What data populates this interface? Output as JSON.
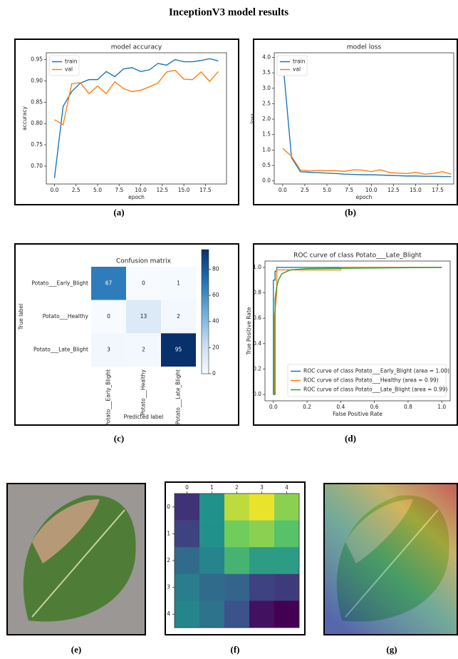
{
  "title": "InceptionV3 model results",
  "images": [
    {
      "caption": "(e)"
    },
    {
      "caption": "(g)"
    }
  ],
  "chart_data": [
    {
      "type": "line",
      "title": "model accuracy",
      "caption": "(a)",
      "xlabel": "epoch",
      "ylabel": "accuracy",
      "legend": "upper left",
      "x": [
        0,
        1,
        2,
        3,
        4,
        5,
        6,
        7,
        8,
        9,
        10,
        11,
        12,
        13,
        14,
        15,
        16,
        17,
        18,
        19
      ],
      "series": [
        {
          "name": "train",
          "color": "#1f77b4",
          "values": [
            0.672,
            0.84,
            0.875,
            0.895,
            0.903,
            0.903,
            0.922,
            0.91,
            0.928,
            0.931,
            0.922,
            0.926,
            0.941,
            0.937,
            0.95,
            0.945,
            0.945,
            0.948,
            0.952,
            0.947
          ]
        },
        {
          "name": "val",
          "color": "#ff7f0e",
          "values": [
            0.809,
            0.797,
            0.893,
            0.896,
            0.87,
            0.888,
            0.87,
            0.898,
            0.882,
            0.875,
            0.878,
            0.886,
            0.895,
            0.921,
            0.925,
            0.904,
            0.903,
            0.921,
            0.899,
            0.922
          ]
        }
      ],
      "xlim": [
        -0.95,
        19.95
      ],
      "xticks": [
        {
          "value": 0,
          "label": "0.0"
        },
        2.5,
        {
          "value": 5,
          "label": "5.0"
        },
        7.5,
        {
          "value": 10,
          "label": "10.0"
        },
        12.5,
        {
          "value": 15,
          "label": "15.0"
        },
        17.5
      ],
      "ylim": [
        0.658,
        0.966
      ],
      "yticks": [
        {
          "value": 0.7,
          "label": "0.70"
        },
        0.75,
        {
          "value": 0.8,
          "label": "0.80"
        },
        0.85,
        {
          "value": 0.9,
          "label": "0.90"
        },
        0.95
      ]
    },
    {
      "type": "line",
      "title": "model loss",
      "caption": "(b)",
      "xlabel": "epoch",
      "ylabel": "loss",
      "legend": "upper left",
      "x": [
        0,
        1,
        2,
        3,
        4,
        5,
        6,
        7,
        8,
        9,
        10,
        11,
        12,
        13,
        14,
        15,
        16,
        17,
        18,
        19
      ],
      "series": [
        {
          "name": "train",
          "color": "#1f77b4",
          "values": [
            3.95,
            0.75,
            0.3,
            0.28,
            0.27,
            0.25,
            0.24,
            0.22,
            0.21,
            0.2,
            0.2,
            0.19,
            0.18,
            0.17,
            0.16,
            0.16,
            0.15,
            0.15,
            0.14,
            0.14
          ]
        },
        {
          "name": "val",
          "color": "#ff7f0e",
          "values": [
            1.05,
            0.8,
            0.35,
            0.32,
            0.34,
            0.33,
            0.33,
            0.31,
            0.36,
            0.35,
            0.3,
            0.36,
            0.28,
            0.25,
            0.24,
            0.28,
            0.22,
            0.24,
            0.3,
            0.22
          ]
        }
      ],
      "xlim": [
        -0.95,
        19.3
      ],
      "xticks": [
        {
          "value": 0,
          "label": "0.0"
        },
        2.5,
        {
          "value": 5,
          "label": "5.0"
        },
        7.5,
        {
          "value": 10,
          "label": "10.0"
        },
        12.5,
        {
          "value": 15,
          "label": "15.0"
        },
        17.5
      ],
      "ylim": [
        -0.1,
        4.15
      ],
      "yticks": [
        {
          "value": 0,
          "label": "0.0"
        },
        0.5,
        {
          "value": 1,
          "label": "1.0"
        },
        1.5,
        {
          "value": 2,
          "label": "2.0"
        },
        2.5,
        {
          "value": 3,
          "label": "3.0"
        },
        3.5,
        {
          "value": 4,
          "label": "4.0"
        }
      ]
    },
    {
      "type": "confusion",
      "title": "Confusion matrix",
      "caption": "(c)",
      "xlabel": "Predicted label",
      "ylabel": "True label",
      "colormap": "Blues",
      "x_categories": [
        "Potato___Early_Blight",
        "Potato___Healthy",
        "Potato___Late_Blight"
      ],
      "y_categories": [
        "Potato___Early_Blight",
        "Potato___Healthy",
        "Potato___Late_Blight"
      ],
      "values": [
        [
          67,
          0,
          1
        ],
        [
          0,
          13,
          2
        ],
        [
          3,
          2,
          95
        ]
      ],
      "clim": [
        0,
        95
      ],
      "cticks": [
        0,
        20,
        40,
        60,
        80
      ]
    },
    {
      "type": "roc",
      "title": "ROC curve of class Potato___Late_Blight",
      "caption": "(d)",
      "xlabel": "False Positive Rate",
      "ylabel": "True Positive Rate",
      "legend": "lower right",
      "series": [
        {
          "name": "ROC curve of class Potato___Early_Blight (area = 1.00)",
          "color": "#1f77b4",
          "x": [
            0,
            0,
            0.01,
            0.01,
            0.02,
            0.02,
            0.05,
            1
          ],
          "values": [
            0,
            0.9,
            0.9,
            0.97,
            0.97,
            1,
            1,
            1
          ]
        },
        {
          "name": "ROC curve of class Potato___Healthy (area = 0.99)",
          "color": "#ff7f0e",
          "x": [
            0,
            0.005,
            0.005,
            0.02,
            0.02,
            0.4,
            0.4,
            1
          ],
          "values": [
            0,
            0,
            0.6,
            0.8,
            0.98,
            0.98,
            1,
            1
          ]
        },
        {
          "name": "ROC curve of class Potato___Late_Blight (area = 0.99)",
          "color": "#2ca02c",
          "x": [
            0,
            0.01,
            0.01,
            0.02,
            0.03,
            0.05,
            0.1,
            0.2,
            1
          ],
          "values": [
            0,
            0,
            0.75,
            0.85,
            0.9,
            0.95,
            0.98,
            0.99,
            1
          ]
        }
      ],
      "xlim": [
        -0.05,
        1.05
      ],
      "xticks": [
        {
          "value": 0,
          "label": "0.0"
        },
        0.2,
        0.4,
        0.6,
        0.8,
        {
          "value": 1,
          "label": "1.0"
        }
      ],
      "ylim": [
        -0.05,
        1.05
      ],
      "yticks": [
        {
          "value": 0,
          "label": "0.0"
        },
        0.2,
        0.4,
        0.6,
        0.8,
        {
          "value": 1,
          "label": "1.0"
        }
      ]
    },
    {
      "type": "heatmap",
      "caption": "(f)",
      "colormap": "viridis",
      "values": [
        [
          0.15,
          0.5,
          0.9,
          0.97,
          0.82
        ],
        [
          0.2,
          0.5,
          0.78,
          0.82,
          0.72
        ],
        [
          0.35,
          0.45,
          0.65,
          0.55,
          0.55
        ],
        [
          0.42,
          0.35,
          0.32,
          0.2,
          0.18
        ],
        [
          0.45,
          0.38,
          0.25,
          0.05,
          0
        ]
      ],
      "clim": [
        0,
        1
      ],
      "xticks": [
        0,
        1,
        2,
        3,
        4
      ],
      "yticks": [
        0,
        1,
        2,
        3,
        4
      ]
    }
  ]
}
